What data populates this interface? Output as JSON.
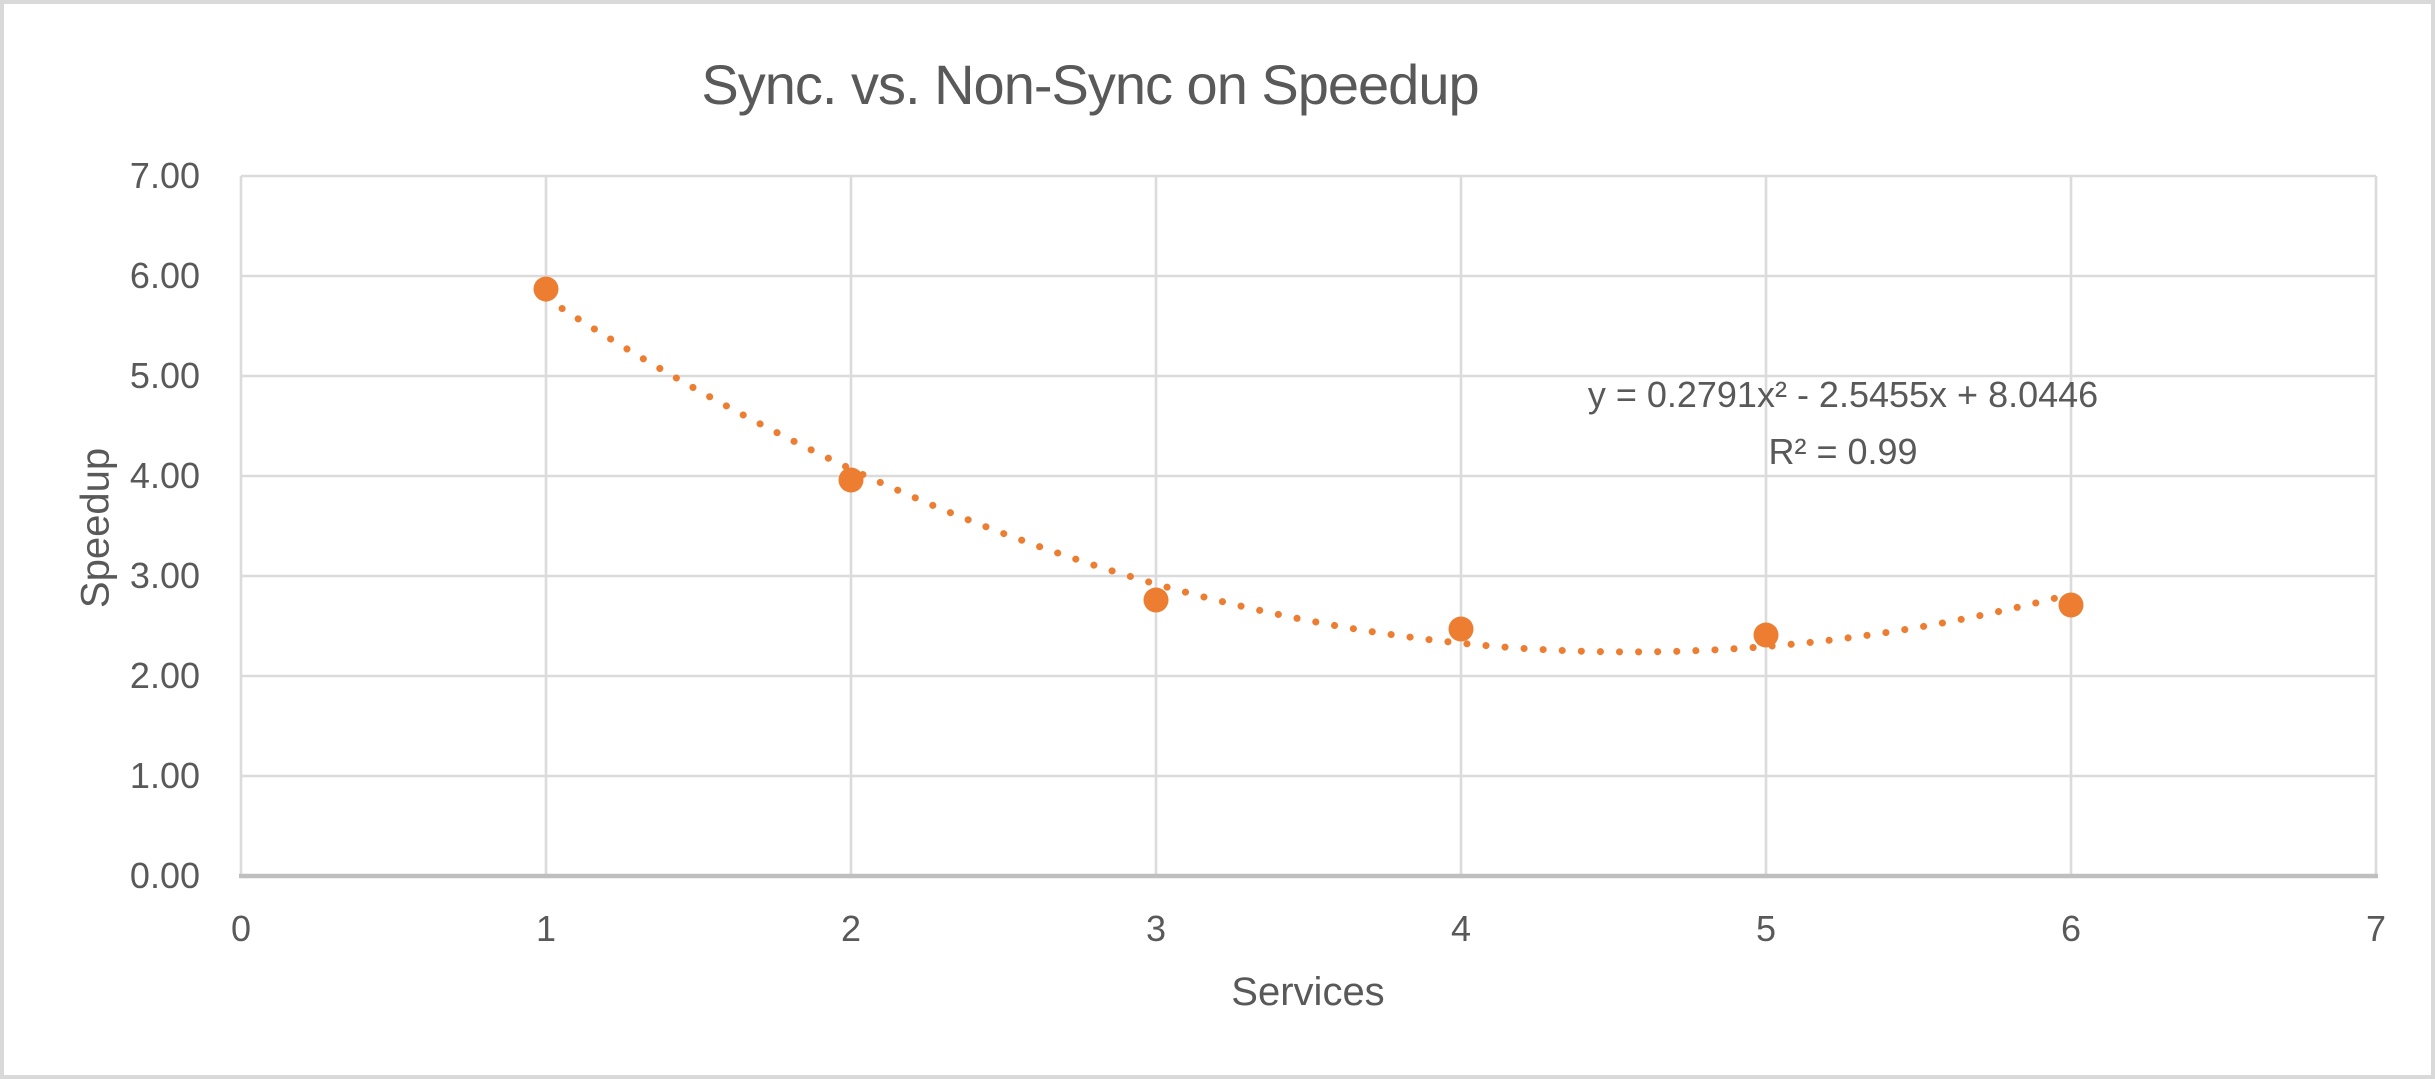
{
  "chart_data": {
    "type": "scatter",
    "title": "Sync. vs. Non-Sync on Speedup",
    "xlabel": "Services",
    "ylabel": "Speedup",
    "x": [
      1,
      2,
      3,
      4,
      5,
      6
    ],
    "y": [
      5.87,
      3.96,
      2.76,
      2.47,
      2.41,
      2.71
    ],
    "xlim": [
      0,
      7
    ],
    "ylim": [
      0,
      7
    ],
    "x_ticks": [
      "0",
      "1",
      "2",
      "3",
      "4",
      "5",
      "6",
      "7"
    ],
    "y_ticks": [
      "0.00",
      "1.00",
      "2.00",
      "3.00",
      "4.00",
      "5.00",
      "6.00",
      "7.00"
    ],
    "grid": true,
    "legend": false,
    "trendline": {
      "type": "polynomial",
      "order": 2,
      "a": 0.2791,
      "b": -2.5455,
      "c": 8.0446,
      "range": [
        1,
        6
      ],
      "style": "dotted",
      "equation_label": "y = 0.2791x² - 2.5455x + 8.0446",
      "r_squared_label": "R² = 0.99"
    },
    "colors": {
      "marker": "#ED7D31",
      "trendline": "#ED7D31",
      "text": "#595959",
      "gridline": "#DBDBDB",
      "axis_line": "#BFBFBF",
      "background": "#FFFFFF",
      "border": "#D9D9D9"
    }
  }
}
